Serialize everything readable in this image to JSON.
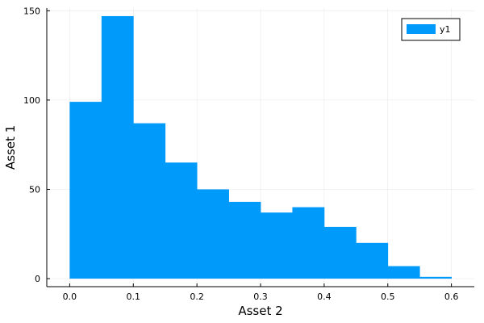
{
  "chart_data": {
    "type": "bar",
    "xlabel": "Asset 2",
    "ylabel": "Asset 1",
    "xlim": [
      -0.036,
      0.636
    ],
    "ylim": [
      -4.5,
      151.5
    ],
    "xticks": [
      0.0,
      0.1,
      0.2,
      0.3,
      0.4,
      0.5,
      0.6
    ],
    "xtick_labels": [
      "0.0",
      "0.1",
      "0.2",
      "0.3",
      "0.4",
      "0.5",
      "0.6"
    ],
    "yticks": [
      0,
      50,
      100,
      150
    ],
    "ytick_labels": [
      "0",
      "50",
      "100",
      "150"
    ],
    "grid": true,
    "legend_position": "top-right",
    "series": [
      {
        "name": "y1",
        "color": "#009AFA",
        "bins": [
          {
            "x0": 0.0,
            "x1": 0.05,
            "value": 99
          },
          {
            "x0": 0.05,
            "x1": 0.1,
            "value": 147
          },
          {
            "x0": 0.1,
            "x1": 0.15,
            "value": 87
          },
          {
            "x0": 0.15,
            "x1": 0.2,
            "value": 65
          },
          {
            "x0": 0.2,
            "x1": 0.25,
            "value": 50
          },
          {
            "x0": 0.25,
            "x1": 0.3,
            "value": 43
          },
          {
            "x0": 0.3,
            "x1": 0.35,
            "value": 37
          },
          {
            "x0": 0.35,
            "x1": 0.4,
            "value": 40
          },
          {
            "x0": 0.4,
            "x1": 0.45,
            "value": 29
          },
          {
            "x0": 0.45,
            "x1": 0.5,
            "value": 20
          },
          {
            "x0": 0.5,
            "x1": 0.55,
            "value": 7
          },
          {
            "x0": 0.55,
            "x1": 0.6,
            "value": 1
          }
        ]
      }
    ]
  }
}
